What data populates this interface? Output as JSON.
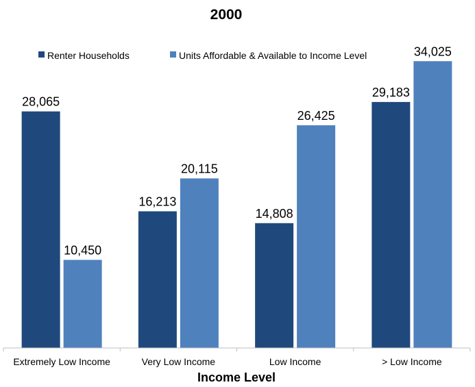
{
  "chart_data": {
    "type": "bar",
    "title": "2000",
    "xlabel": "Income Level",
    "ylabel": "",
    "categories": [
      "Extremely Low Income",
      "Very Low Income",
      "Low Income",
      "> Low Income"
    ],
    "series": [
      {
        "name": "Renter Households",
        "values": [
          28065,
          16213,
          14808,
          29183
        ],
        "color": "#1f497d",
        "labels": [
          "28,065",
          "16,213",
          "14,808",
          "29,183"
        ]
      },
      {
        "name": "Units Affordable & Available to Income Level",
        "values": [
          10450,
          20115,
          26425,
          34025
        ],
        "color": "#4f81bd",
        "labels": [
          "10,450",
          "20,115",
          "26,425",
          "34,025"
        ]
      }
    ],
    "ylim": [
      0,
      36000
    ],
    "grid": false,
    "legend_position": "top-left"
  }
}
